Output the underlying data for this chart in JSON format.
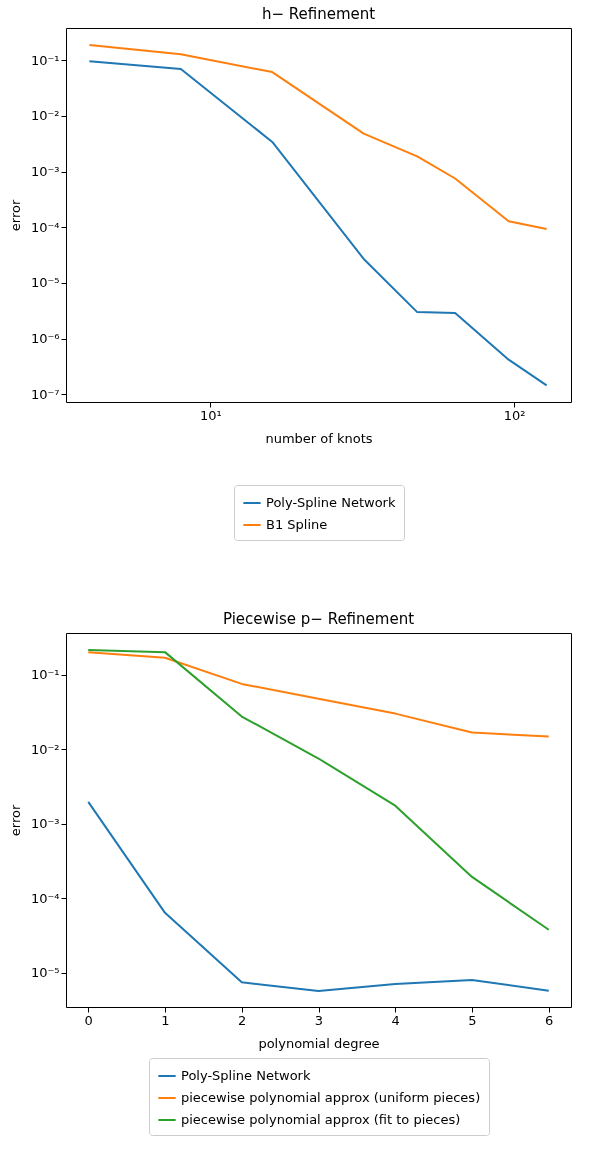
{
  "chart_data": [
    {
      "type": "line",
      "title": "h− Refinement",
      "xlabel": "number of knots",
      "ylabel": "error",
      "log": "xy",
      "grid": false,
      "legend": "bottom",
      "x": [
        4,
        8,
        16,
        32,
        48,
        64,
        96,
        128
      ],
      "xlim": [
        3.35,
        154
      ],
      "xticks": [
        {
          "value": 10,
          "label": "10¹"
        },
        {
          "value": 100,
          "label": "10²"
        }
      ],
      "ylim": [
        7.3e-08,
        0.377
      ],
      "yticks": [
        {
          "value": 0.1,
          "label": "10⁻¹"
        },
        {
          "value": 0.01,
          "label": "10⁻²"
        },
        {
          "value": 0.001,
          "label": "10⁻³"
        },
        {
          "value": 0.0001,
          "label": "10⁻⁴"
        },
        {
          "value": 1e-05,
          "label": "10⁻⁵"
        },
        {
          "value": 1e-06,
          "label": "10⁻⁶"
        },
        {
          "value": 1e-07,
          "label": "10⁻⁷"
        }
      ],
      "series": [
        {
          "name": "Poly-Spline Network",
          "color": "#1f77b4",
          "values": [
            0.095,
            0.069,
            0.0034,
            2.7e-05,
            3e-06,
            2.9e-06,
            4.2e-07,
            1.45e-07
          ]
        },
        {
          "name": "B1 Spline",
          "color": "#ff7f0e",
          "values": [
            0.186,
            0.127,
            0.061,
            0.0048,
            0.00187,
            0.00075,
            0.000128,
            9.3e-05
          ]
        }
      ]
    },
    {
      "type": "line",
      "title": "Piecewise p− Refinement",
      "xlabel": "polynomial degree",
      "ylabel": "error",
      "log": "y",
      "grid": false,
      "legend": "bottom",
      "x": [
        0,
        1,
        2,
        3,
        4,
        5,
        6
      ],
      "xlim": [
        -0.29,
        6.29
      ],
      "xticks": [
        0,
        1,
        2,
        3,
        4,
        5,
        6
      ],
      "ylim": [
        3.5e-06,
        0.361
      ],
      "yticks": [
        {
          "value": 0.1,
          "label": "10⁻¹"
        },
        {
          "value": 0.01,
          "label": "10⁻²"
        },
        {
          "value": 0.001,
          "label": "10⁻³"
        },
        {
          "value": 0.0001,
          "label": "10⁻⁴"
        },
        {
          "value": 1e-05,
          "label": "10⁻⁵"
        }
      ],
      "series": [
        {
          "name": "Poly-Spline Network",
          "color": "#1f77b4",
          "values": [
            0.00197,
            6.4e-05,
            7.5e-06,
            5.75e-06,
            7.1e-06,
            8.05e-06,
            5.8e-06
          ]
        },
        {
          "name": "piecewise polynomial approx (uniform pieces)",
          "color": "#ff7f0e",
          "values": [
            0.2,
            0.168,
            0.075,
            0.0475,
            0.03,
            0.0167,
            0.0148
          ]
        },
        {
          "name": "piecewise polynomial approx (fit to pieces)",
          "color": "#2ca02c",
          "values": [
            0.213,
            0.2,
            0.0274,
            0.0075,
            0.00175,
            0.000194,
            3.8e-05
          ]
        }
      ]
    }
  ]
}
